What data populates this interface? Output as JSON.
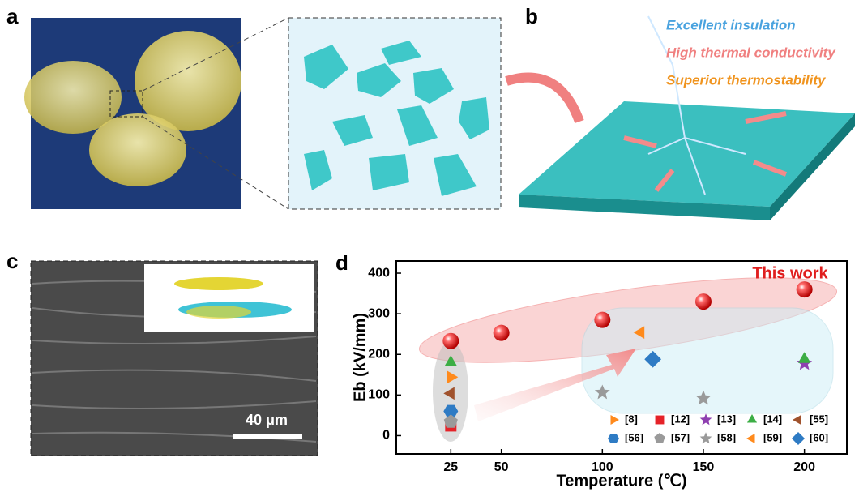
{
  "panels": {
    "a": "a",
    "b": "b",
    "c": "c",
    "d": "d"
  },
  "panel_b": {
    "properties": [
      "Excellent insulation",
      "High thermal conductivity",
      "Superior thermostability"
    ]
  },
  "panel_c": {
    "scale_bar": "40 μm"
  },
  "chart_data": {
    "type": "scatter",
    "x_label": "Temperature (℃)",
    "y_label": "Eb (kV/mm)",
    "xlim": [
      -2,
      221
    ],
    "ylim": [
      -45,
      430
    ],
    "xticks": [
      25,
      50,
      100,
      150,
      200
    ],
    "yticks": [
      0,
      100,
      200,
      300,
      400
    ],
    "series": [
      {
        "name": "This work",
        "color": "#e01e1e",
        "marker": "sphere",
        "x": [
          25,
          50,
          100,
          150,
          200
        ],
        "values": [
          233,
          253,
          285,
          330,
          360
        ]
      },
      {
        "name": "[8]",
        "color": "#ff8a1c",
        "marker": "triangle-right",
        "x": [
          25
        ],
        "values": [
          144
        ]
      },
      {
        "name": "[12]",
        "color": "#e52228",
        "marker": "square",
        "x": [
          25
        ],
        "values": [
          24
        ]
      },
      {
        "name": "[13]",
        "color": "#8e3fb0",
        "marker": "star",
        "x": [
          200
        ],
        "values": [
          178
        ]
      },
      {
        "name": "[14]",
        "color": "#3cae45",
        "marker": "triangle-up",
        "x": [
          25,
          200
        ],
        "values": [
          180,
          188
        ]
      },
      {
        "name": "[55]",
        "color": "#a0522d",
        "marker": "triangle-left",
        "x": [
          25
        ],
        "values": [
          104
        ]
      },
      {
        "name": "[56]",
        "color": "#2e7bc4",
        "marker": "hexagon",
        "x": [
          25
        ],
        "values": [
          60
        ]
      },
      {
        "name": "[57]",
        "color": "#9a9a9a",
        "marker": "pentagon",
        "x": [
          25
        ],
        "values": [
          34
        ]
      },
      {
        "name": "[58]",
        "color": "#9a9a9a",
        "marker": "star",
        "x": [
          100,
          150
        ],
        "values": [
          106,
          92
        ]
      },
      {
        "name": "[59]",
        "color": "#ff8a1c",
        "marker": "triangle-left",
        "x": [
          119
        ],
        "values": [
          254
        ]
      },
      {
        "name": "[60]",
        "color": "#2e7bc4",
        "marker": "diamond",
        "x": [
          125
        ],
        "values": [
          188
        ]
      }
    ]
  }
}
